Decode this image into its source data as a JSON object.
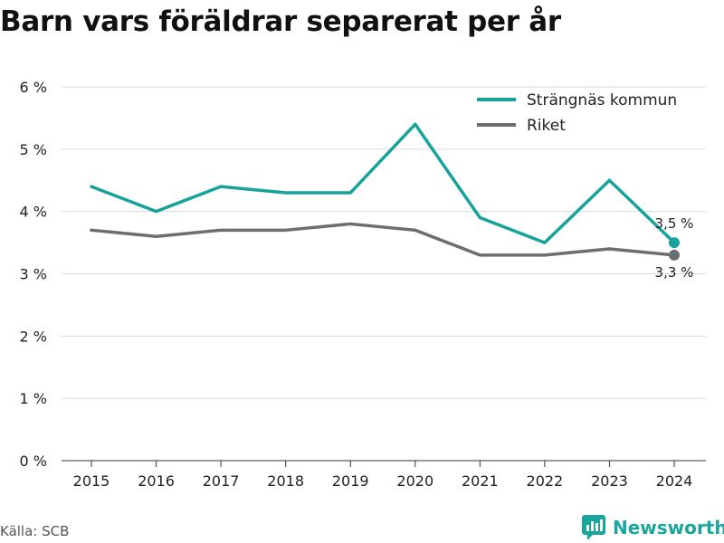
{
  "title": "Barn vars föräldrar separerat per år",
  "source": "Källa: SCB",
  "brand": {
    "name": "Newsworthy",
    "icon": "newsworthy-logo-icon"
  },
  "colors": {
    "series_1": "#16a39c",
    "series_2": "#6d6e71",
    "grid": "#d9d9d9",
    "text": "#222222"
  },
  "chart_data": {
    "type": "line",
    "title": "Barn vars föräldrar separerat per år",
    "x": [
      "2015",
      "2016",
      "2017",
      "2018",
      "2019",
      "2020",
      "2021",
      "2022",
      "2023",
      "2024"
    ],
    "y_ticks": [
      "0 %",
      "1 %",
      "2 %",
      "3 %",
      "4 %",
      "5 %",
      "6 %"
    ],
    "ylim": [
      0,
      6
    ],
    "unit": "%",
    "grid": true,
    "legend_position": "top-right",
    "series": [
      {
        "name": "Strängnäs kommun",
        "values": [
          4.4,
          4.0,
          4.4,
          4.3,
          4.3,
          5.4,
          3.9,
          3.5,
          4.5,
          3.5
        ],
        "end_label": "3,5 %"
      },
      {
        "name": "Riket",
        "values": [
          3.7,
          3.6,
          3.7,
          3.7,
          3.8,
          3.7,
          3.3,
          3.3,
          3.4,
          3.3
        ],
        "end_label": "3,3 %"
      }
    ]
  }
}
